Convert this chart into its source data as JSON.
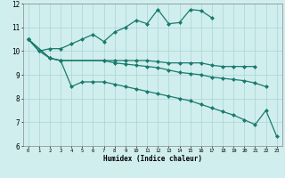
{
  "xlabel": "Humidex (Indice chaleur)",
  "bg_color": "#d0eeee",
  "line_color": "#1a7a6e",
  "grid_color": "#aad4d4",
  "xlim": [
    -0.5,
    23.5
  ],
  "ylim": [
    6,
    12
  ],
  "xticks": [
    0,
    1,
    2,
    3,
    4,
    5,
    6,
    7,
    8,
    9,
    10,
    11,
    12,
    13,
    14,
    15,
    16,
    17,
    18,
    19,
    20,
    21,
    22,
    23
  ],
  "yticks": [
    6,
    7,
    8,
    9,
    10,
    11,
    12
  ],
  "series": {
    "line1": {
      "x": [
        0,
        1,
        2,
        3,
        4,
        5,
        6,
        7,
        8,
        9,
        10,
        11,
        12,
        13,
        14,
        15,
        16,
        17
      ],
      "y": [
        10.5,
        10.0,
        10.1,
        10.1,
        10.3,
        10.5,
        10.7,
        10.4,
        10.8,
        11.0,
        11.3,
        11.15,
        11.75,
        11.15,
        11.2,
        11.75,
        11.7,
        11.4
      ]
    },
    "line2": {
      "x": [
        0,
        2,
        3,
        7,
        8,
        9,
        10,
        11,
        12,
        13,
        14,
        15,
        16,
        17,
        18,
        19,
        20,
        21
      ],
      "y": [
        10.5,
        9.7,
        9.6,
        9.6,
        9.6,
        9.6,
        9.6,
        9.6,
        9.55,
        9.5,
        9.5,
        9.5,
        9.5,
        9.4,
        9.35,
        9.35,
        9.35,
        9.35
      ]
    },
    "line3": {
      "x": [
        0,
        2,
        3,
        7,
        8,
        9,
        10,
        11,
        12,
        13,
        14,
        15,
        16,
        17,
        18,
        19,
        20,
        21,
        22
      ],
      "y": [
        10.5,
        9.7,
        9.6,
        9.6,
        9.5,
        9.45,
        9.4,
        9.35,
        9.3,
        9.2,
        9.1,
        9.05,
        9.0,
        8.9,
        8.85,
        8.8,
        8.75,
        8.65,
        8.5
      ]
    },
    "line4": {
      "x": [
        0,
        1,
        2,
        3,
        4,
        5,
        6,
        7,
        8,
        9,
        10,
        11,
        12,
        13,
        14,
        15,
        16,
        17,
        18,
        19,
        20,
        21,
        22,
        23
      ],
      "y": [
        10.5,
        10.0,
        9.7,
        9.6,
        8.5,
        8.7,
        8.7,
        8.7,
        8.6,
        8.5,
        8.4,
        8.3,
        8.2,
        8.1,
        8.0,
        7.9,
        7.75,
        7.6,
        7.45,
        7.3,
        7.1,
        6.9,
        7.5,
        6.4
      ]
    }
  }
}
